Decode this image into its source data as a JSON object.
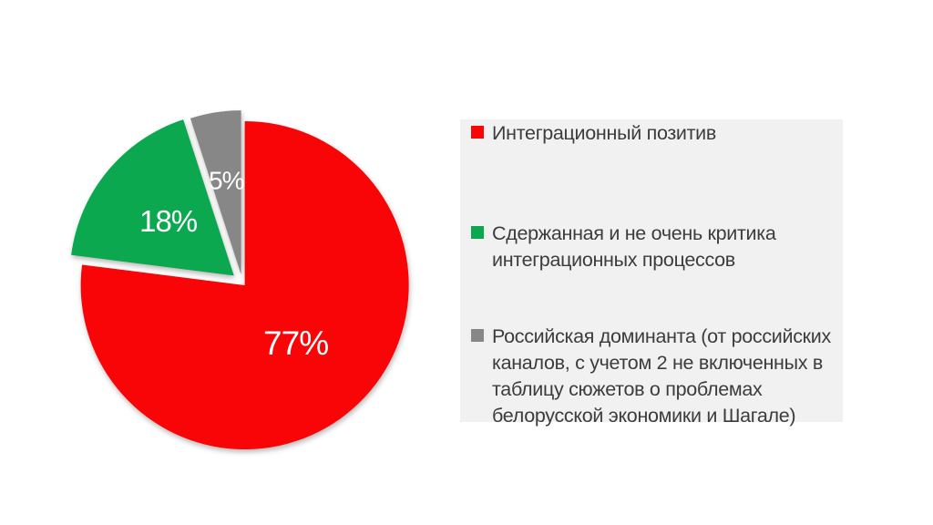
{
  "page": {
    "background": "#ffffff"
  },
  "chart_data": {
    "type": "pie",
    "title": "",
    "categories": [
      "Интеграционный позитив",
      "Сдержанная и не очень критика интеграционных процессов",
      "Российская доминанта (от российских каналов, с учетом 2 не включенных в таблицу сюжетов о проблемах белорусской экономики и Шагале)"
    ],
    "values": [
      77,
      18,
      5
    ],
    "slice_labels": [
      "77%",
      "18%",
      "5%"
    ],
    "colors": [
      "#f90507",
      "#0ca850",
      "#878787"
    ],
    "slice_label_color": "#ffffff",
    "start_angle_deg": 0,
    "direction": "clockwise",
    "exploded": true,
    "legend_position": "right"
  },
  "legend": {
    "background": "#f1f1f1",
    "text_color": "#3c3c3c",
    "items": [
      {
        "color": "#f90507",
        "lines": [
          "Интеграционный позитив"
        ]
      },
      {
        "color": "#0ca850",
        "lines": [
          "Сдержанная и не очень критика",
          "интеграционных процессов"
        ]
      },
      {
        "color": "#878787",
        "lines": [
          "Российская доминанта (от российских",
          "каналов, с учетом 2 не включенных в",
          "таблицу сюжетов о проблемах",
          "белорусской экономики и Шагале)"
        ]
      }
    ]
  }
}
